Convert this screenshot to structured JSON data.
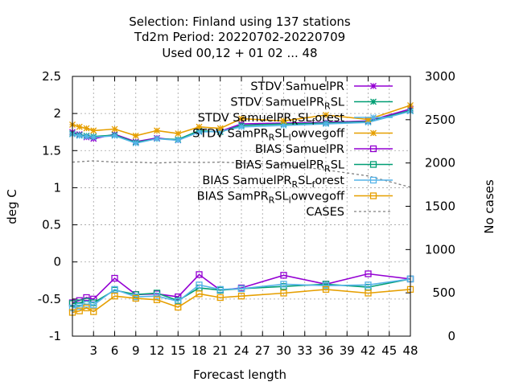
{
  "chart_data": {
    "type": "line",
    "title_lines": [
      "Selection: Finland using   137 stations",
      "Td2m   Period: 20220702-20220709",
      "Used  00,12 + 01 02 ... 48"
    ],
    "xlabel": "Forecast length",
    "ylabel": "deg C",
    "y2label": "No cases",
    "xlim": [
      0,
      48
    ],
    "ylim": [
      -1,
      2.5
    ],
    "y2lim": [
      0,
      3000
    ],
    "x_ticks": [
      3,
      6,
      9,
      12,
      15,
      18,
      21,
      24,
      27,
      30,
      33,
      36,
      39,
      42,
      45,
      48
    ],
    "y_ticks": [
      -1,
      -0.5,
      0,
      0.5,
      1,
      1.5,
      2,
      2.5
    ],
    "y_tick_labels": [
      "-1",
      "-0.5",
      "0",
      "0.5",
      "1",
      "1.5",
      "2",
      "2.5"
    ],
    "y2_ticks": [
      0,
      500,
      1000,
      1500,
      2000,
      2500,
      3000
    ],
    "grid": true,
    "legend_position": "top-right",
    "x": [
      0,
      1,
      2,
      3,
      6,
      9,
      12,
      15,
      18,
      21,
      24,
      30,
      36,
      42,
      48
    ],
    "series": [
      {
        "name": "STDV SamuelPR",
        "axis": "y1",
        "color": "#9400d3",
        "marker": "x",
        "dashed": false,
        "values": [
          1.75,
          1.72,
          1.68,
          1.66,
          1.72,
          1.62,
          1.67,
          1.64,
          1.76,
          1.76,
          1.86,
          1.87,
          1.88,
          1.9,
          2.06
        ]
      },
      {
        "name": "STDV SamuelPR_R SL",
        "axis": "y1",
        "color": "#009e73",
        "marker": "x",
        "dashed": false,
        "values": [
          1.73,
          1.71,
          1.7,
          1.69,
          1.71,
          1.61,
          1.66,
          1.65,
          1.77,
          1.75,
          1.84,
          1.86,
          1.87,
          1.89,
          2.04
        ]
      },
      {
        "name": "STDV SamuelPR_R SL_forest",
        "axis": "y1",
        "color": "#56b4e9",
        "marker": "x",
        "dashed": false,
        "values": [
          1.72,
          1.7,
          1.69,
          1.68,
          1.7,
          1.6,
          1.66,
          1.64,
          1.75,
          1.76,
          1.82,
          1.84,
          1.86,
          1.88,
          2.03
        ]
      },
      {
        "name": "STDV SamPR_R SL_lowvegoff",
        "axis": "y1",
        "color": "#e69f00",
        "marker": "x",
        "dashed": false,
        "values": [
          1.85,
          1.82,
          1.8,
          1.77,
          1.79,
          1.7,
          1.77,
          1.73,
          1.82,
          1.8,
          1.93,
          1.9,
          1.98,
          1.92,
          2.11
        ]
      },
      {
        "name": "BIAS SamuelPR",
        "axis": "y1",
        "color": "#9400d3",
        "marker": "square",
        "dashed": false,
        "values": [
          -0.55,
          -0.52,
          -0.48,
          -0.5,
          -0.22,
          -0.44,
          -0.43,
          -0.47,
          -0.17,
          -0.38,
          -0.35,
          -0.18,
          -0.3,
          -0.16,
          -0.23
        ]
      },
      {
        "name": "BIAS SamuelPR_R SL",
        "axis": "y1",
        "color": "#009e73",
        "marker": "square",
        "dashed": false,
        "values": [
          -0.56,
          -0.55,
          -0.53,
          -0.55,
          -0.38,
          -0.44,
          -0.42,
          -0.52,
          -0.35,
          -0.38,
          -0.36,
          -0.33,
          -0.3,
          -0.34,
          -0.23
        ]
      },
      {
        "name": "BIAS SamuelPR_R SL_forest",
        "axis": "y1",
        "color": "#56b4e9",
        "marker": "square",
        "dashed": false,
        "values": [
          -0.62,
          -0.6,
          -0.57,
          -0.58,
          -0.37,
          -0.47,
          -0.46,
          -0.53,
          -0.31,
          -0.37,
          -0.36,
          -0.3,
          -0.32,
          -0.31,
          -0.23
        ]
      },
      {
        "name": "BIAS SamPR_R SL_lowvegoff",
        "axis": "y1",
        "color": "#e69f00",
        "marker": "square",
        "dashed": false,
        "values": [
          -0.68,
          -0.66,
          -0.62,
          -0.67,
          -0.46,
          -0.49,
          -0.51,
          -0.61,
          -0.43,
          -0.48,
          -0.46,
          -0.42,
          -0.37,
          -0.42,
          -0.37
        ]
      },
      {
        "name": "CASES",
        "axis": "y2",
        "color": "#808080",
        "marker": "none",
        "dashed": true,
        "values": [
          2010,
          2015,
          2020,
          2025,
          2010,
          2010,
          2000,
          2010,
          2005,
          2010,
          2000,
          1980,
          1920,
          1850,
          1720
        ]
      }
    ],
    "legend_entries": [
      {
        "parts": [
          {
            "t": "STDV SamuelPR"
          }
        ]
      },
      {
        "parts": [
          {
            "t": "STDV SamuelPR"
          },
          {
            "t": "R",
            "sub": true
          },
          {
            "t": "SL"
          }
        ]
      },
      {
        "parts": [
          {
            "t": "STDV SamuelPR"
          },
          {
            "t": "R",
            "sub": true
          },
          {
            "t": "SL"
          },
          {
            "t": "f",
            "sub": true
          },
          {
            "t": "orest"
          }
        ]
      },
      {
        "parts": [
          {
            "t": "STDV SamPR"
          },
          {
            "t": "R",
            "sub": true
          },
          {
            "t": "SL"
          },
          {
            "t": "l",
            "sub": true
          },
          {
            "t": "owvegoff"
          }
        ]
      },
      {
        "parts": [
          {
            "t": "BIAS SamuelPR"
          }
        ]
      },
      {
        "parts": [
          {
            "t": "BIAS SamuelPR"
          },
          {
            "t": "R",
            "sub": true
          },
          {
            "t": "SL"
          }
        ]
      },
      {
        "parts": [
          {
            "t": "BIAS SamuelPR"
          },
          {
            "t": "R",
            "sub": true
          },
          {
            "t": "SL"
          },
          {
            "t": "f",
            "sub": true
          },
          {
            "t": "orest"
          }
        ]
      },
      {
        "parts": [
          {
            "t": "BIAS SamPR"
          },
          {
            "t": "R",
            "sub": true
          },
          {
            "t": "SL"
          },
          {
            "t": "l",
            "sub": true
          },
          {
            "t": "owvegoff"
          }
        ]
      },
      {
        "parts": [
          {
            "t": "CASES"
          }
        ]
      }
    ]
  }
}
